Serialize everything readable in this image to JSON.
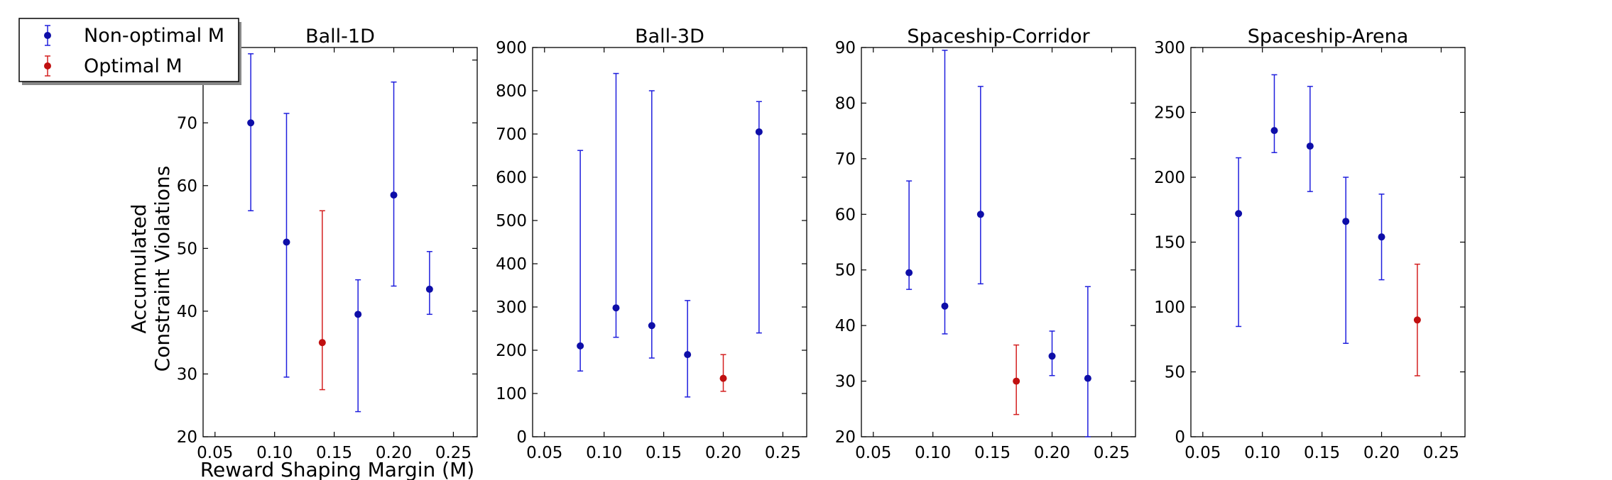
{
  "colors": {
    "non_optimal": "#1f1fdd",
    "non_optimal_point": "#0e0ea8",
    "optimal": "#d41f1f",
    "optimal_point": "#c01010"
  },
  "legend": {
    "placement": "upper-left",
    "entries": [
      {
        "label": "Non-optimal M",
        "color": "#1f1fdd"
      },
      {
        "label": "Optimal M",
        "color": "#d41f1f"
      }
    ]
  },
  "shared": {
    "xlabel": "Reward Shaping Margin (M)",
    "ylabel_line1": "Accumulated",
    "ylabel_line2": "Constraint Violations",
    "xlim": [
      0.04,
      0.27
    ],
    "xticks": [
      0.05,
      0.1,
      0.15,
      0.2,
      0.25
    ],
    "xtick_labels": [
      "0.05",
      "0.10",
      "0.15",
      "0.20",
      "0.25"
    ]
  },
  "chart_data": [
    {
      "type": "scatter",
      "title": "Ball-1D",
      "xlabel": "Reward Shaping Margin (M)",
      "ylabel": "Accumulated Constraint Violations",
      "ylim": [
        20,
        82
      ],
      "yticks": [
        20,
        30,
        40,
        50,
        60,
        70,
        80
      ],
      "grid": false,
      "points": [
        {
          "x": 0.08,
          "y": 70,
          "low": 56,
          "high": 81,
          "optimal": false
        },
        {
          "x": 0.11,
          "y": 51,
          "low": 29.5,
          "high": 71.5,
          "optimal": false
        },
        {
          "x": 0.14,
          "y": 35,
          "low": 27.5,
          "high": 56,
          "optimal": true
        },
        {
          "x": 0.17,
          "y": 39.5,
          "low": 24,
          "high": 45,
          "optimal": false
        },
        {
          "x": 0.2,
          "y": 58.5,
          "low": 44,
          "high": 76.5,
          "optimal": false
        },
        {
          "x": 0.23,
          "y": 43.5,
          "low": 39.5,
          "high": 49.5,
          "optimal": false
        }
      ]
    },
    {
      "type": "scatter",
      "title": "Ball-3D",
      "ylim": [
        0,
        900
      ],
      "yticks": [
        0,
        100,
        200,
        300,
        400,
        500,
        600,
        700,
        800,
        900
      ],
      "grid": false,
      "points": [
        {
          "x": 0.08,
          "y": 210,
          "low": 152,
          "high": 662,
          "optimal": false
        },
        {
          "x": 0.11,
          "y": 298,
          "low": 230,
          "high": 840,
          "optimal": false
        },
        {
          "x": 0.14,
          "y": 257,
          "low": 182,
          "high": 800,
          "optimal": false
        },
        {
          "x": 0.17,
          "y": 190,
          "low": 92,
          "high": 315,
          "optimal": false
        },
        {
          "x": 0.2,
          "y": 135,
          "low": 105,
          "high": 190,
          "optimal": true
        },
        {
          "x": 0.23,
          "y": 705,
          "low": 240,
          "high": 775,
          "optimal": false
        }
      ]
    },
    {
      "type": "scatter",
      "title": "Spaceship-Corridor",
      "ylim": [
        20,
        90
      ],
      "yticks": [
        20,
        30,
        40,
        50,
        60,
        70,
        80,
        90
      ],
      "grid": false,
      "points": [
        {
          "x": 0.08,
          "y": 49.5,
          "low": 46.5,
          "high": 66,
          "optimal": false
        },
        {
          "x": 0.11,
          "y": 43.5,
          "low": 38.5,
          "high": 89.5,
          "optimal": false
        },
        {
          "x": 0.14,
          "y": 60,
          "low": 47.5,
          "high": 83,
          "optimal": false
        },
        {
          "x": 0.17,
          "y": 30,
          "low": 24,
          "high": 36.5,
          "optimal": true
        },
        {
          "x": 0.2,
          "y": 34.5,
          "low": 31,
          "high": 39,
          "optimal": false
        },
        {
          "x": 0.23,
          "y": 30.5,
          "low": 20,
          "high": 47,
          "optimal": false
        }
      ]
    },
    {
      "type": "scatter",
      "title": "Spaceship-Arena",
      "ylim": [
        0,
        300
      ],
      "yticks": [
        0,
        50,
        100,
        150,
        200,
        250,
        300
      ],
      "grid": false,
      "points": [
        {
          "x": 0.08,
          "y": 172,
          "low": 85,
          "high": 215,
          "optimal": false
        },
        {
          "x": 0.11,
          "y": 236,
          "low": 219,
          "high": 279,
          "optimal": false
        },
        {
          "x": 0.14,
          "y": 224,
          "low": 189,
          "high": 270,
          "optimal": false
        },
        {
          "x": 0.17,
          "y": 166,
          "low": 72,
          "high": 200,
          "optimal": false
        },
        {
          "x": 0.2,
          "y": 154,
          "low": 121,
          "high": 187,
          "optimal": false
        },
        {
          "x": 0.23,
          "y": 90,
          "low": 47,
          "high": 133,
          "optimal": true
        }
      ]
    }
  ]
}
